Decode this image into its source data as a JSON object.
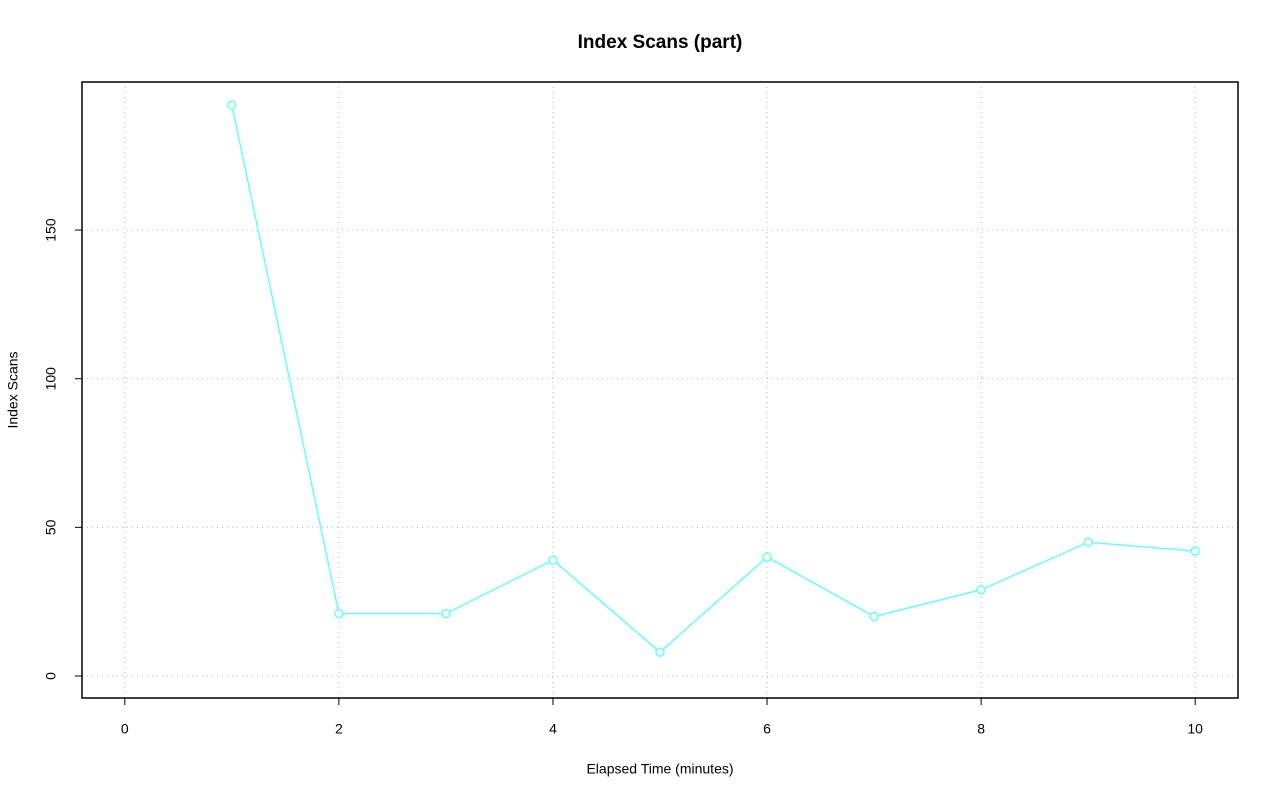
{
  "chart_data": {
    "type": "line",
    "title": "Index Scans (part)",
    "x_label": "Elapsed Time (minutes)",
    "y_label": "Index Scans",
    "x": [
      1,
      2,
      3,
      4,
      5,
      6,
      7,
      8,
      9,
      10
    ],
    "values": [
      192,
      21,
      21,
      39,
      8,
      40,
      20,
      29,
      45,
      42
    ],
    "color": "#66ffff",
    "xlim": [
      -0.4,
      10.4
    ],
    "ylim": [
      -7.4,
      199.8
    ],
    "xticks": [
      0,
      2,
      4,
      6,
      8,
      10
    ],
    "yticks": [
      0,
      50,
      100,
      150
    ],
    "grid": true
  }
}
